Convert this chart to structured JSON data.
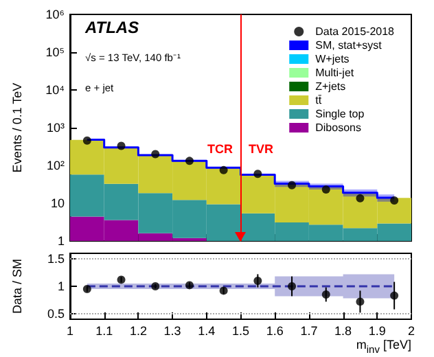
{
  "chart_data": [
    {
      "type": "bar",
      "ylabel": "Events / 0.1 TeV",
      "stacked": true,
      "log": true,
      "grid": false,
      "legend": "top right",
      "tick_labels": "y",
      "x": [
        1.05,
        1.15,
        1.25,
        1.35,
        1.45,
        1.55,
        1.65,
        1.75,
        1.85,
        1.95
      ],
      "xlim": [
        1,
        2
      ],
      "xticks": [
        1,
        1.1,
        1.2,
        1.3,
        1.4,
        1.5,
        1.6,
        1.7,
        1.8,
        1.9,
        2
      ],
      "ylim": [
        1,
        1000000
      ],
      "yticks": [
        1,
        10,
        {
          "value": 100,
          "label": "10²"
        },
        {
          "value": 1000,
          "label": "10³"
        },
        {
          "value": 10000,
          "label": "10⁴"
        },
        {
          "value": 100000,
          "label": "10⁵"
        },
        {
          "value": 1000000,
          "label": "10⁶"
        }
      ],
      "series": [
        {
          "name": "Data 2015-2018",
          "type": "scatter",
          "marker": "circle",
          "color": "#000000",
          "values": [
            457,
            330,
            200,
            132,
            75,
            60,
            30,
            23,
            13.5,
            11.8
          ]
        },
        {
          "name": "SM, stat+syst",
          "type": "step",
          "color": "#0000ff",
          "values": [
            480,
            300,
            188,
            132,
            87,
            57,
            33,
            28,
            19,
            14
          ],
          "lower": [
            456,
            285,
            179,
            125,
            83,
            54,
            27,
            23,
            15,
            11
          ],
          "upper": [
            504,
            315,
            197,
            139,
            91,
            60,
            39,
            33,
            23,
            17
          ]
        },
        {
          "name": "Dibosons",
          "color": "#990099",
          "values": [
            4.4,
            3.6,
            1.6,
            1.2,
            null,
            null,
            null,
            null,
            null,
            null
          ]
        },
        {
          "name": "Single top",
          "color": "#339999",
          "values": [
            53,
            29,
            17,
            11,
            9.4,
            5.4,
            3.1,
            2.7,
            2.2,
            2.9
          ]
        },
        {
          "name": "tt̄",
          "color": "#cccc33",
          "values": [
            420,
            270,
            170,
            120,
            78,
            52,
            30,
            25,
            17,
            11
          ]
        },
        {
          "name": "Z+jets",
          "color": "#006600",
          "values": [
            null,
            null,
            null,
            null,
            null,
            null,
            null,
            null,
            null,
            null
          ]
        },
        {
          "name": "Multi-jet",
          "color": "#99ff99",
          "values": [
            null,
            null,
            null,
            null,
            null,
            null,
            null,
            null,
            null,
            null
          ]
        },
        {
          "name": "W+jets",
          "color": "#00ccff",
          "values": [
            null,
            null,
            null,
            null,
            null,
            null,
            null,
            null,
            null,
            null
          ]
        }
      ],
      "ref_lines": [
        {
          "axis": "x",
          "value": 1.5,
          "label": null,
          "color": "#ff0000"
        }
      ],
      "annotations": [
        "ATLAS",
        "√s = 13 TeV, 140 fb⁻¹",
        "e + jet",
        "TCR",
        "TVR"
      ]
    },
    {
      "type": "scatter",
      "ylabel": "Data / SM",
      "xlabel": "m$_{inv}$ [TeV]",
      "grid": false,
      "legend": false,
      "x": [
        1.05,
        1.15,
        1.25,
        1.35,
        1.45,
        1.55,
        1.65,
        1.75,
        1.85,
        1.95
      ],
      "xlim": [
        1,
        2
      ],
      "xticks": [
        1,
        1.1,
        1.2,
        1.3,
        1.4,
        1.5,
        1.6,
        1.7,
        1.8,
        1.9,
        2
      ],
      "ylim": [
        0.4,
        1.6
      ],
      "yticks": [
        0.5,
        1,
        1.5
      ],
      "series": [
        {
          "type": "step",
          "color": "#3333aa",
          "line_style": "dashed",
          "values": [
            1,
            1,
            1,
            1,
            1,
            1,
            1,
            1,
            1,
            1
          ],
          "lower": [
            0.95,
            0.95,
            0.95,
            0.95,
            0.95,
            0.95,
            0.82,
            0.82,
            0.78,
            0.78
          ],
          "upper": [
            1.05,
            1.05,
            1.05,
            1.05,
            1.05,
            1.05,
            1.18,
            1.18,
            1.22,
            1.22
          ]
        },
        {
          "marker": "circle",
          "color": "#000000",
          "values": [
            0.95,
            1.12,
            1.0,
            1.02,
            0.92,
            1.1,
            1.0,
            0.85,
            0.72,
            0.83
          ],
          "errors": [
            0.05,
            0.05,
            0.04,
            0.05,
            0.06,
            0.12,
            0.18,
            0.13,
            0.2,
            0.25
          ]
        }
      ],
      "ref_lines": [
        {
          "axis": "y",
          "value": 0.5,
          "label": null,
          "color": "#aaaaaa",
          "line_style": "dotted"
        },
        {
          "axis": "y",
          "value": 1.5,
          "label": null,
          "color": "#aaaaaa",
          "line_style": "dotted"
        }
      ]
    }
  ]
}
